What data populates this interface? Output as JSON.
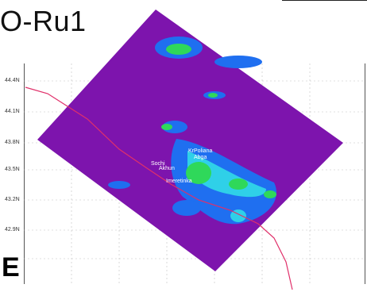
{
  "title": "O-Ru1",
  "latitude_labels": [
    "44.4N",
    "44.1N",
    "43.8N",
    "43.5N",
    "43.2N",
    "42.9N"
  ],
  "places": [
    "KrPoliana",
    "Abga",
    "Sochi",
    "Akhun",
    "Imeretinka"
  ],
  "bottom_glyph": "E",
  "colors": {
    "coverage_fill": "#7d14ad",
    "level_blue": "#1f6ff0",
    "level_cyan": "#2fd0e8",
    "level_green": "#2fd85a",
    "coastline": "#e0306a",
    "grid": "#bfbfbf"
  }
}
